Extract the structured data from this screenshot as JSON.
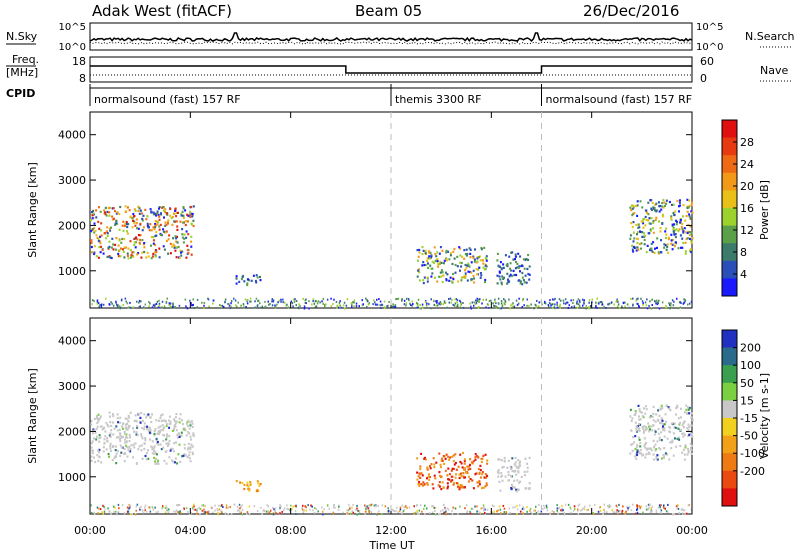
{
  "header": {
    "station": "Adak West (fitACF)",
    "beam": "Beam 05",
    "date": "26/Dec/2016"
  },
  "left_labels": {
    "nsky": "N.Sky",
    "freq_top": "Freq.",
    "freq_unit": "[MHz]",
    "cpid": "CPID"
  },
  "right_labels": {
    "nsearch": "N.Search",
    "nave": "Nave"
  },
  "noise_axis": {
    "left_top": "10^5",
    "left_bottom": "10^0",
    "right_top": "10^5",
    "right_bottom": "10^0"
  },
  "freq_axis": {
    "left_top": "18",
    "left_bottom": "8",
    "right_top": "60",
    "right_bottom": "0"
  },
  "cpid_segments": [
    {
      "start": 0,
      "end": 12,
      "label": "normalsound (fast) 157 RF"
    },
    {
      "start": 12,
      "end": 18,
      "label": "themis 3300 RF"
    },
    {
      "start": 18,
      "end": 24,
      "label": "normalsound (fast) 157 RF"
    }
  ],
  "chart_data": [
    {
      "type": "heatmap",
      "panel": "power",
      "ylabel": "Slant Range [km]",
      "ylim": [
        180,
        4500
      ],
      "yticks": [
        1000,
        2000,
        3000,
        4000
      ],
      "xlim": [
        0,
        24
      ],
      "colorbar": {
        "label": "Power [dB]",
        "range": [
          0,
          32
        ],
        "ticks": [
          "4",
          "8",
          "12",
          "16",
          "20",
          "24",
          "28"
        ],
        "colors": [
          "#1a1aff",
          "#2a4fb8",
          "#3c7a6a",
          "#5aa048",
          "#9bd22c",
          "#e8c018",
          "#f29a18",
          "#ef6a14",
          "#e83a10",
          "#e01010"
        ]
      },
      "regions": [
        {
          "t0": 0.0,
          "t1": 4.1,
          "r0": 1300,
          "r1": 2450,
          "level": "mixed-high"
        },
        {
          "t0": 5.8,
          "t1": 6.8,
          "r0": 700,
          "r1": 950,
          "level": "low"
        },
        {
          "t0": 13.0,
          "t1": 15.8,
          "r0": 750,
          "r1": 1550,
          "level": "mixed"
        },
        {
          "t0": 16.2,
          "t1": 17.5,
          "r0": 700,
          "r1": 1450,
          "level": "low"
        },
        {
          "t0": 21.5,
          "t1": 24.0,
          "r0": 1400,
          "r1": 2600,
          "level": "mixed"
        }
      ]
    },
    {
      "type": "heatmap",
      "panel": "velocity",
      "ylabel": "Slant Range [km]",
      "xlabel": "Time UT",
      "ylim": [
        180,
        4500
      ],
      "yticks": [
        1000,
        2000,
        3000,
        4000
      ],
      "xlim": [
        0,
        24
      ],
      "xticks": [
        "00:00",
        "04:00",
        "08:00",
        "12:00",
        "16:00",
        "20:00",
        "00:00"
      ],
      "colorbar": {
        "label": "Velocity [m s-1]",
        "ticks": [
          "200",
          "100",
          "50",
          "15",
          "-15",
          "-50",
          "-100",
          "-200"
        ],
        "colors": [
          "#2030c0",
          "#2a6a8a",
          "#3aa050",
          "#7ad040",
          "#c8c8c8",
          "#f2d020",
          "#f2a018",
          "#ee7a12",
          "#ea4a10",
          "#e01010"
        ]
      },
      "regions": [
        {
          "t0": 0.0,
          "t1": 4.1,
          "r0": 1300,
          "r1": 2450,
          "level": "ground-scatter"
        },
        {
          "t0": 5.8,
          "t1": 6.8,
          "r0": 700,
          "r1": 950,
          "level": "negative"
        },
        {
          "t0": 13.0,
          "t1": 15.8,
          "r0": 750,
          "r1": 1550,
          "level": "negative-strong"
        },
        {
          "t0": 16.2,
          "t1": 17.5,
          "r0": 700,
          "r1": 1450,
          "level": "ground-scatter"
        },
        {
          "t0": 21.5,
          "t1": 24.0,
          "r0": 1400,
          "r1": 2600,
          "level": "ground-scatter"
        }
      ]
    }
  ]
}
